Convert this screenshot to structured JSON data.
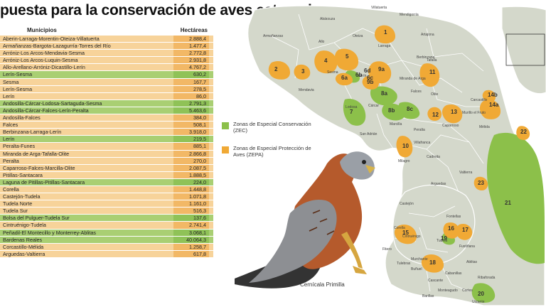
{
  "title": "puesta para la conservación de aves esteparias",
  "table": {
    "header_municipios": "Municipios",
    "header_hectareas": "Hectáreas",
    "rows": [
      {
        "name": "Aberin-Larraga-Morentin-Oteiza-Villatuerta",
        "value": "2.888,4",
        "type": "zepa"
      },
      {
        "name": "Armañanzas-Bargota-Lazagurría-Torres del Río",
        "value": "1.477,4",
        "type": "zepa"
      },
      {
        "name": "Arróniz-Los Arcos-Mendavia-Sesma",
        "value": "2.772,8",
        "type": "zepa"
      },
      {
        "name": "Arróniz-Los Arcos-Luquin-Sesma",
        "value": "2.931,8",
        "type": "zepa"
      },
      {
        "name": "Allo-Arellano-Arróniz-Dicastillo-Lerín",
        "value": "4.767,2",
        "type": "zepa"
      },
      {
        "name": "Lerín-Sesma",
        "value": "630,2",
        "type": "zec"
      },
      {
        "name": "Sesma",
        "value": "167,7",
        "type": "zepa"
      },
      {
        "name": "Lerín-Sesma",
        "value": "278,5",
        "type": "zepa"
      },
      {
        "name": "Lerín",
        "value": "86,0",
        "type": "zepa"
      },
      {
        "name": "Andosilla-Cárcar-Lodosa-Sartaguda-Sesma",
        "value": "2.791,3",
        "type": "zec"
      },
      {
        "name": "Andosilla-Cárcar-Falces-Lerín-Peralta",
        "value": "5.463,6",
        "type": "zec"
      },
      {
        "name": "Andosilla-Falces",
        "value": "384,0",
        "type": "zepa"
      },
      {
        "name": "Falces",
        "value": "508,1",
        "type": "zepa"
      },
      {
        "name": "Berbinzana-Larraga-Lerín",
        "value": "3.918,0",
        "type": "zepa"
      },
      {
        "name": "Lerín",
        "value": "219,5",
        "type": "zec"
      },
      {
        "name": "Peralta-Funes",
        "value": "885,1",
        "type": "zepa"
      },
      {
        "name": "Miranda de Arga-Tafalla-Olite",
        "value": "2.866,8",
        "type": "zepa"
      },
      {
        "name": "Peralta",
        "value": "270,0",
        "type": "zepa"
      },
      {
        "name": "Caparroso-Falces-Marcilla-Olite",
        "value": "2.087,5",
        "type": "zepa"
      },
      {
        "name": "Pitillas-Santacara",
        "value": "1.888,5",
        "type": "zepa"
      },
      {
        "name": "Laguna de Pitillas-Pitillas-Santacara",
        "value": "224,0",
        "type": "zec"
      },
      {
        "name": "Corella",
        "value": "1.448,8",
        "type": "zepa"
      },
      {
        "name": "Castejón-Tudela",
        "value": "1.071,8",
        "type": "zepa"
      },
      {
        "name": "Tudela Norte",
        "value": "1.161,0",
        "type": "zepa"
      },
      {
        "name": "Tudela Sur",
        "value": "516,3",
        "type": "zepa"
      },
      {
        "name": "Bolsa del Pulguer-Tudela Sur",
        "value": "137,6",
        "type": "zec"
      },
      {
        "name": "Cintruénigo-Tudela",
        "value": "2.741,4",
        "type": "zepa"
      },
      {
        "name": "Peñadil-El Montecillo y Monterrey-Ablitas",
        "value": "3.068,1",
        "type": "zec"
      },
      {
        "name": "Bardenas Reales",
        "value": "40.064,3",
        "type": "zec"
      },
      {
        "name": "Corcastillo-Mélida",
        "value": "1.258,7",
        "type": "zepa"
      },
      {
        "name": "Arguedas-Valtierra",
        "value": "617,8",
        "type": "zepa"
      }
    ]
  },
  "legend": {
    "zec_label": "Zonas de Especial Conservación (ZEC)",
    "zepa_label": "Zonas de Especial Protección de Aves (ZEPA)",
    "zec_color": "#8cc04a",
    "zepa_color": "#f0a935"
  },
  "map": {
    "base_color": "#d4d8cb",
    "towns": [
      "Villatuerta",
      "Mendigorría",
      "Abárzuza",
      "Oteiza",
      "Artajona",
      "Armañanzas",
      "Allo",
      "Larraga",
      "Berbinzana",
      "Sesma",
      "Lerín",
      "Miranda de Arga",
      "Tafalla",
      "Mendavia",
      "Lodosa",
      "Cárcar",
      "Falces",
      "Olite",
      "Murillo el Fruto",
      "San Adrián",
      "Peralta",
      "Marcilla",
      "Caparroso",
      "Mélida",
      "Villafranca",
      "Cadreita",
      "Milagro",
      "Carcastillo",
      "Valtierra",
      "Arguedas",
      "Castejón",
      "Corella",
      "Cintruénigo",
      "Tudela",
      "Fitero",
      "Cascante",
      "Fontellas",
      "Ribaforada",
      "Ablitas",
      "Monteagudo",
      "Cortes",
      "Buñuel",
      "Cabanillas",
      "Fustiñana",
      "Murchante",
      "Barillas",
      "Tulebras",
      "Urzante"
    ],
    "zone_numbers": [
      "1",
      "2",
      "3",
      "4",
      "5",
      "6a",
      "6b",
      "6c",
      "6d",
      "7",
      "8a",
      "8b",
      "8c",
      "9a",
      "9b",
      "10",
      "11",
      "12",
      "13",
      "14a",
      "14b",
      "15",
      "16",
      "17",
      "18",
      "19",
      "20",
      "21",
      "22",
      "23"
    ]
  },
  "caption": "Cernícala Primilla"
}
